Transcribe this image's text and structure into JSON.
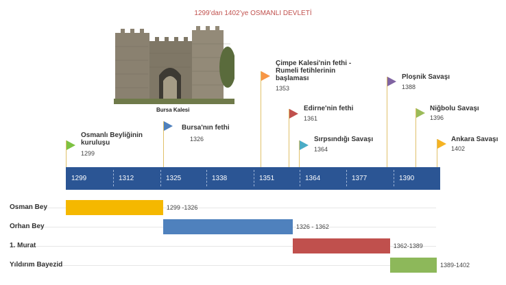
{
  "title": "1299’dan 1402’ye OSMANLI DEVLETİ",
  "photo": {
    "caption": "Bursa Kalesi"
  },
  "events": [
    {
      "title": "Osmanlı Beyliğinin kuruluşu",
      "year": "1299",
      "color": "#7dc242"
    },
    {
      "title": "Bursa'nın fethi",
      "year": "1326",
      "color": "#4f81bd"
    },
    {
      "title": "Çimpe Kalesi'nin fethi - Rumeli fetihlerinin başlaması",
      "year": "1353",
      "color": "#f79646"
    },
    {
      "title": "Edirne'nin fethi",
      "year": "1361",
      "color": "#c0504d"
    },
    {
      "title": "Sırpsındığı Savaşı",
      "year": "1364",
      "color": "#4bacc6"
    },
    {
      "title": "Ploşnik Savaşı",
      "year": "1388",
      "color": "#8064a2"
    },
    {
      "title": "Niğbolu Savaşı",
      "year": "1396",
      "color": "#9bbb59"
    },
    {
      "title": "Ankara Savaşı",
      "year": "1402",
      "color": "#f5b323"
    }
  ],
  "axis": {
    "labels": [
      "1299",
      "1312",
      "1325",
      "1338",
      "1351",
      "1364",
      "1377",
      "1390"
    ],
    "color": "#2b5594"
  },
  "rulers": [
    {
      "name": "Osman Bey",
      "range": "1299 -1326",
      "start": 1299,
      "end": 1326,
      "color": "#f5b800"
    },
    {
      "name": "Orhan Bey",
      "range": "1326 - 1362",
      "start": 1326,
      "end": 1362,
      "color": "#4f81bd"
    },
    {
      "name": "1. Murat",
      "range": "1362-1389",
      "start": 1362,
      "end": 1389,
      "color": "#c0504d"
    },
    {
      "name": "Yıldırım Bayezid",
      "range": "1389-1402",
      "start": 1389,
      "end": 1402,
      "color": "#8db85a"
    }
  ]
}
